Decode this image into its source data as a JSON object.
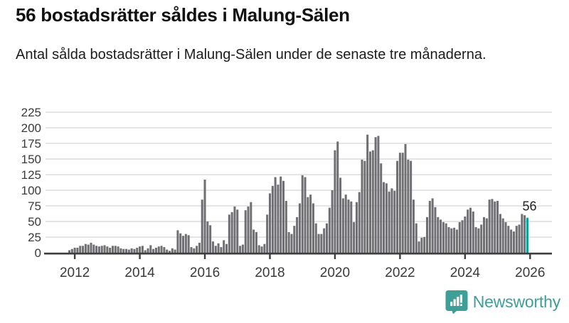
{
  "header": {
    "title": "56 bostadsrätter såldes i Malung-Sälen",
    "subtitle": "Antal sålda bostadsrätter i Malung-Sälen under de senaste tre månaderna."
  },
  "chart_data": {
    "type": "bar",
    "title": "56 bostadsrätter såldes i Malung-Sälen",
    "xlabel": "",
    "ylabel": "",
    "start_month": "2011-11",
    "end_month": "2025-12",
    "values": [
      4,
      6,
      8,
      8,
      11,
      11,
      14,
      13,
      16,
      13,
      11,
      10,
      11,
      12,
      10,
      8,
      11,
      11,
      10,
      7,
      6,
      6,
      5,
      7,
      6,
      8,
      10,
      11,
      4,
      7,
      12,
      6,
      8,
      10,
      11,
      9,
      5,
      3,
      7,
      5,
      36,
      31,
      27,
      30,
      28,
      9,
      7,
      11,
      16,
      85,
      117,
      50,
      44,
      18,
      11,
      15,
      9,
      20,
      14,
      61,
      65,
      74,
      69,
      11,
      13,
      68,
      74,
      81,
      37,
      33,
      12,
      10,
      14,
      61,
      95,
      107,
      121,
      109,
      122,
      115,
      83,
      33,
      30,
      43,
      57,
      79,
      124,
      121,
      89,
      93,
      79,
      47,
      30,
      30,
      39,
      47,
      72,
      100,
      164,
      178,
      120,
      87,
      93,
      85,
      82,
      49,
      81,
      97,
      149,
      147,
      189,
      162,
      164,
      185,
      187,
      143,
      113,
      111,
      98,
      103,
      99,
      147,
      160,
      160,
      174,
      149,
      147,
      85,
      47,
      18,
      24,
      25,
      57,
      83,
      87,
      73,
      57,
      53,
      49,
      47,
      41,
      39,
      40,
      37,
      49,
      52,
      58,
      69,
      72,
      66,
      41,
      39,
      45,
      57,
      55,
      85,
      86,
      82,
      83,
      62,
      55,
      49,
      43,
      37,
      34,
      43,
      45,
      62,
      60,
      56
    ],
    "highlight_last": true,
    "annotation": {
      "text": "56",
      "value": 56
    },
    "yticks": [
      0,
      25,
      50,
      75,
      100,
      125,
      150,
      175,
      200,
      225
    ],
    "ylim": [
      0,
      225
    ],
    "xticks": [
      2012,
      2014,
      2016,
      2018,
      2020,
      2022,
      2024,
      2026
    ],
    "grid": true,
    "legend": "none",
    "colors": {
      "bar": "#6e6e73",
      "highlight": "#00a79b",
      "gridline": "#e5e5e5",
      "axis": "#3d3d3d",
      "tick_label": "#3a3a3a",
      "annotation": "#222222"
    }
  },
  "footer": {
    "brand": "Newsworthy",
    "logo_icon": "bar-chart-speech-bubble-icon",
    "logo_color": "#3d9f97"
  }
}
